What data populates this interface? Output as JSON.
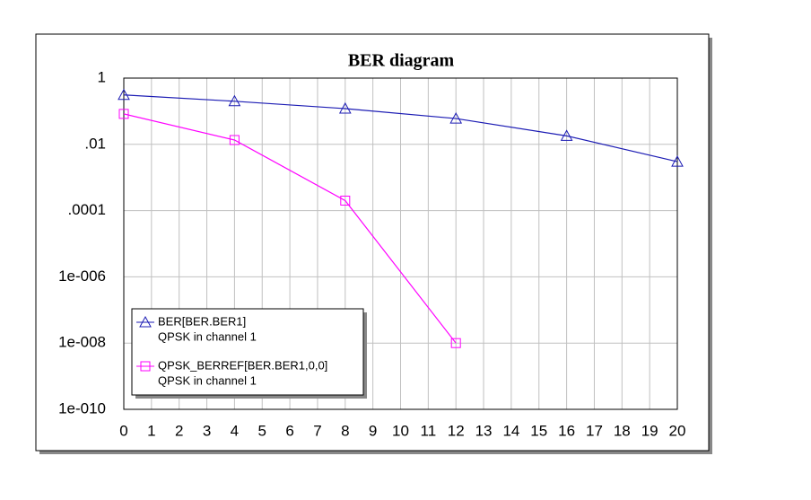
{
  "chart_data": {
    "type": "line",
    "title": "BER diagram",
    "log_y": true,
    "grid": true,
    "xlim": [
      0,
      20
    ],
    "xticks": [
      0,
      1,
      2,
      3,
      4,
      5,
      6,
      7,
      8,
      9,
      10,
      11,
      12,
      13,
      14,
      15,
      16,
      17,
      18,
      19,
      20
    ],
    "ylim": [
      1e-10,
      1
    ],
    "yticks": [
      {
        "value": 1e-10,
        "label": "1e-010"
      },
      {
        "value": 1e-08,
        "label": "1e-008"
      },
      {
        "value": 1e-06,
        "label": "1e-006"
      },
      {
        "value": 0.0001,
        "label": ".0001"
      },
      {
        "value": 0.01,
        "label": ".01"
      },
      1
    ],
    "series": [
      {
        "name": "BER[BER.BER1]",
        "note": "QPSK in channel 1",
        "color": "#1c1cb4",
        "marker": "triangle",
        "x": [
          0,
          4,
          8,
          12,
          16,
          20
        ],
        "values": [
          0.31,
          0.2,
          0.12,
          0.06,
          0.018,
          0.003
        ]
      },
      {
        "name": "QPSK_BERREF[BER.BER1,0,0]",
        "note": "QPSK in channel 1",
        "color": "#ff00ff",
        "marker": "square",
        "x": [
          0,
          4,
          8,
          12
        ],
        "values": [
          0.083,
          0.0135,
          0.0002,
          1e-08
        ]
      }
    ]
  }
}
